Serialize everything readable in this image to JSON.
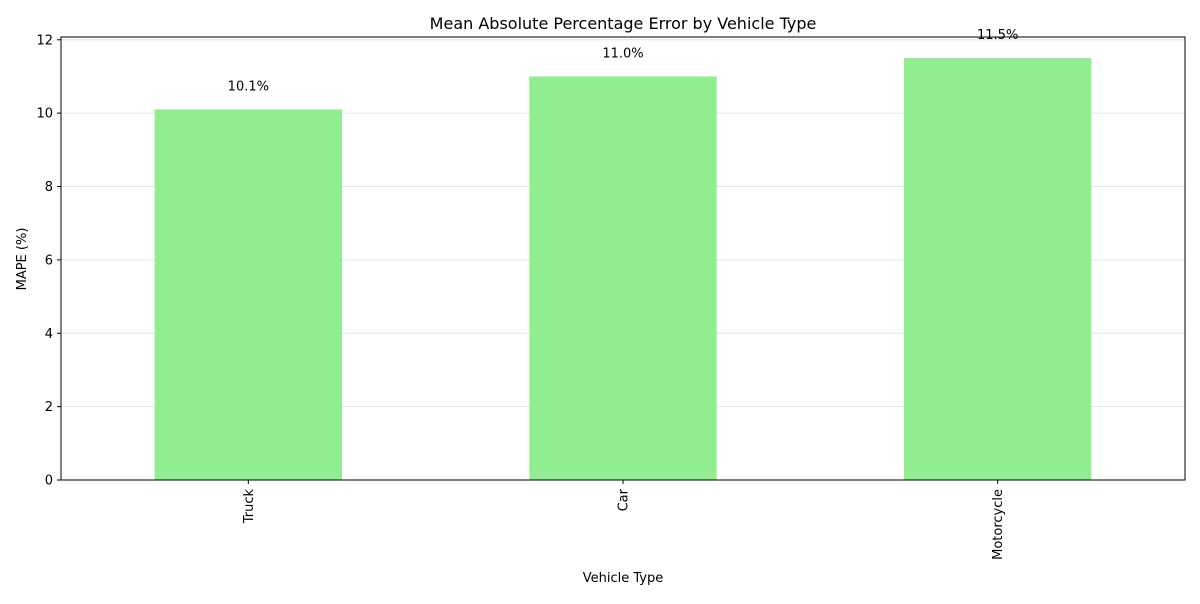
{
  "chart_data": {
    "type": "bar",
    "title": "Mean Absolute Percentage Error by Vehicle Type",
    "xlabel": "Vehicle Type",
    "ylabel": "MAPE (%)",
    "categories": [
      "Truck",
      "Car",
      "Motorcycle"
    ],
    "values": [
      10.1,
      11.0,
      11.5
    ],
    "data_labels": [
      "10.1%",
      "11.0%",
      "11.5%"
    ],
    "ylim": [
      0,
      12.075
    ],
    "yticks": [
      0,
      2,
      4,
      6,
      8,
      10,
      12
    ],
    "ytick_labels": [
      "0",
      "2",
      "4",
      "6",
      "8",
      "10",
      "12"
    ],
    "grid": "y-axis, light",
    "legend": "none",
    "x_tick_rotation": "vertical",
    "colors": {
      "bar": "#90ee90",
      "axis": "#000000",
      "grid": "#e6e6e6",
      "text": "#000000"
    }
  }
}
